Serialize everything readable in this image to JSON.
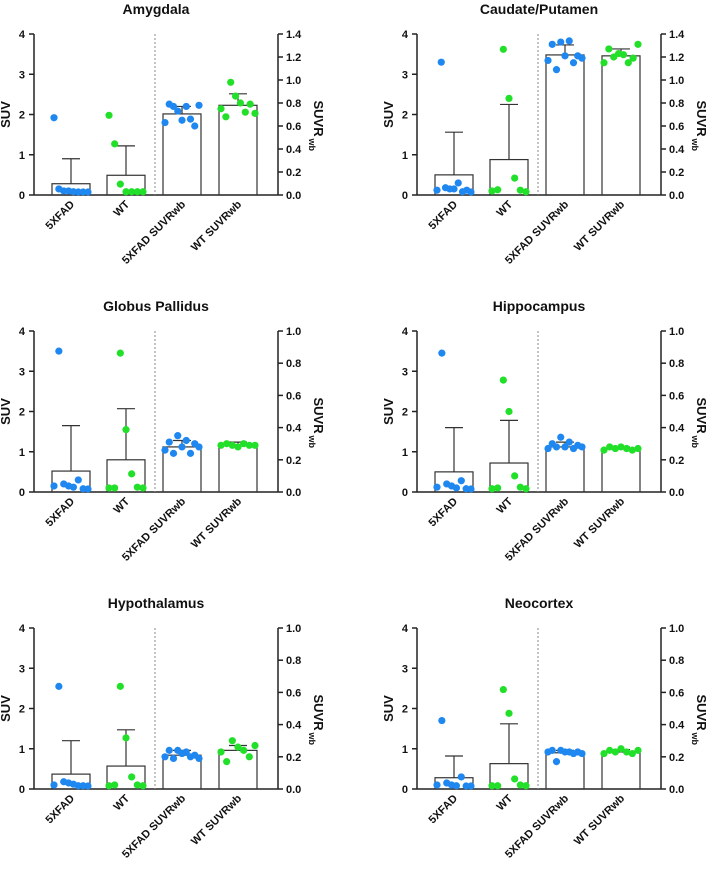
{
  "colors": {
    "5XFAD": "#1f87f0",
    "WT": "#22e02a",
    "axis": "#222222",
    "bar_edge": "#333333"
  },
  "chart_data": [
    {
      "type": "bar",
      "title": "Amygdala",
      "ylabel": "SUV",
      "ylabel_right": "SUVR",
      "ylabel_right_sub": "wb",
      "ylim": [
        0,
        4
      ],
      "ylim_right": [
        0,
        1.4
      ],
      "yticks": [
        "0",
        "1",
        "2",
        "3",
        "4"
      ],
      "yticks_right": [
        "0.0",
        "0.2",
        "0.4",
        "0.6",
        "0.8",
        "1.0",
        "1.2",
        "1.4"
      ],
      "categories": [
        "5XFAD",
        "WT",
        "5XFAD SUVRwb",
        "WT SUVRwb"
      ],
      "series": [
        {
          "name": "5XFAD",
          "axis": "left",
          "mean": 0.28,
          "sd_upper": 0.9,
          "points": [
            1.92,
            0.15,
            0.1,
            0.1,
            0.08,
            0.05,
            0.05,
            0.03
          ]
        },
        {
          "name": "WT",
          "axis": "left",
          "mean": 0.49,
          "sd_upper": 1.22,
          "points": [
            1.98,
            1.27,
            0.27,
            0.08,
            0.08,
            0.08,
            0.08
          ]
        },
        {
          "name": "5XFAD SUVRwb",
          "axis": "right",
          "mean": 0.705,
          "sd_upper": 0.77,
          "points": [
            0.63,
            0.79,
            0.77,
            0.73,
            0.65,
            0.77,
            0.66,
            0.6,
            0.78
          ]
        },
        {
          "name": "WT SUVRwb",
          "axis": "right",
          "mean": 0.78,
          "sd_upper": 0.88,
          "points": [
            0.75,
            0.68,
            0.98,
            0.86,
            0.8,
            0.72,
            0.79,
            0.71
          ]
        }
      ]
    },
    {
      "type": "bar",
      "title": "Caudate/Putamen",
      "ylabel": "SUV",
      "ylabel_right": "SUVR",
      "ylabel_right_sub": "wb",
      "ylim": [
        0,
        4
      ],
      "ylim_right": [
        0,
        1.4
      ],
      "yticks": [
        "0",
        "1",
        "2",
        "3",
        "4"
      ],
      "yticks_right": [
        "0.0",
        "0.2",
        "0.4",
        "0.6",
        "0.8",
        "1.0",
        "1.2",
        "1.4"
      ],
      "categories": [
        "5XFAD",
        "WT",
        "5XFAD SUVRwb",
        "WT SUVRwb"
      ],
      "series": [
        {
          "name": "5XFAD",
          "axis": "left",
          "mean": 0.5,
          "sd_upper": 1.56,
          "points": [
            0.12,
            3.3,
            0.18,
            0.15,
            0.15,
            0.3,
            0.08,
            0.12,
            0.07
          ]
        },
        {
          "name": "WT",
          "axis": "left",
          "mean": 0.88,
          "sd_upper": 2.25,
          "points": [
            0.1,
            0.13,
            3.62,
            2.4,
            0.42,
            0.12,
            0.08
          ]
        },
        {
          "name": "5XFAD SUVRwb",
          "axis": "right",
          "mean": 1.218,
          "sd_upper": 1.305,
          "points": [
            1.17,
            1.31,
            1.09,
            1.33,
            1.21,
            1.34,
            1.15,
            1.21,
            1.19
          ]
        },
        {
          "name": "WT SUVRwb",
          "axis": "right",
          "mean": 1.21,
          "sd_upper": 1.27,
          "points": [
            1.15,
            1.27,
            1.2,
            1.23,
            1.22,
            1.15,
            1.19,
            1.31
          ]
        }
      ]
    },
    {
      "type": "bar",
      "title": "Globus Pallidus",
      "ylabel": "SUV",
      "ylabel_right": "SUVR",
      "ylabel_right_sub": "wb",
      "ylim": [
        0,
        4
      ],
      "ylim_right": [
        0,
        1.0
      ],
      "yticks": [
        "0",
        "1",
        "2",
        "3",
        "4"
      ],
      "yticks_right": [
        "0.0",
        "0.2",
        "0.4",
        "0.6",
        "0.8",
        "1.0"
      ],
      "categories": [
        "5XFAD",
        "WT",
        "5XFAD SUVRwb",
        "WT SUVRwb"
      ],
      "series": [
        {
          "name": "5XFAD",
          "axis": "left",
          "mean": 0.52,
          "sd_upper": 1.65,
          "points": [
            0.15,
            3.5,
            0.2,
            0.15,
            0.12,
            0.3,
            0.08,
            0.05
          ]
        },
        {
          "name": "WT",
          "axis": "left",
          "mean": 0.8,
          "sd_upper": 2.07,
          "points": [
            0.1,
            0.1,
            3.45,
            1.55,
            0.45,
            0.12,
            0.1
          ]
        },
        {
          "name": "5XFAD SUVRwb",
          "axis": "right",
          "mean": 0.28,
          "sd_upper": 0.32,
          "points": [
            0.26,
            0.31,
            0.24,
            0.35,
            0.28,
            0.32,
            0.24,
            0.3,
            0.28
          ]
        },
        {
          "name": "WT SUVRwb",
          "axis": "right",
          "mean": 0.29,
          "sd_upper": 0.31,
          "points": [
            0.29,
            0.3,
            0.29,
            0.28,
            0.3,
            0.29,
            0.29
          ]
        }
      ]
    },
    {
      "type": "bar",
      "title": "Hippocampus",
      "ylabel": "SUV",
      "ylabel_right": "SUVR",
      "ylabel_right_sub": "wb",
      "ylim": [
        0,
        4
      ],
      "ylim_right": [
        0,
        1.0
      ],
      "yticks": [
        "0",
        "1",
        "2",
        "3",
        "4"
      ],
      "yticks_right": [
        "0.0",
        "0.2",
        "0.4",
        "0.6",
        "0.8",
        "1.0"
      ],
      "categories": [
        "5XFAD",
        "WT",
        "5XFAD SUVRwb",
        "WT SUVRwb"
      ],
      "series": [
        {
          "name": "5XFAD",
          "axis": "left",
          "mean": 0.5,
          "sd_upper": 1.6,
          "points": [
            0.12,
            3.45,
            0.2,
            0.15,
            0.1,
            0.28,
            0.08,
            0.05
          ]
        },
        {
          "name": "WT",
          "axis": "left",
          "mean": 0.72,
          "sd_upper": 1.78,
          "points": [
            0.08,
            0.1,
            2.78,
            2.0,
            0.4,
            0.12,
            0.08
          ]
        },
        {
          "name": "5XFAD SUVRwb",
          "axis": "right",
          "mean": 0.28,
          "sd_upper": 0.31,
          "points": [
            0.27,
            0.3,
            0.28,
            0.34,
            0.28,
            0.31,
            0.27,
            0.29,
            0.28
          ]
        },
        {
          "name": "WT SUVRwb",
          "axis": "right",
          "mean": 0.27,
          "sd_upper": 0.28,
          "points": [
            0.26,
            0.28,
            0.27,
            0.28,
            0.27,
            0.26,
            0.27
          ]
        }
      ]
    },
    {
      "type": "bar",
      "title": "Hypothalamus",
      "ylabel": "SUV",
      "ylabel_right": "SUVR",
      "ylabel_right_sub": "wb",
      "ylim": [
        0,
        4
      ],
      "ylim_right": [
        0,
        1.0
      ],
      "yticks": [
        "0",
        "1",
        "2",
        "3",
        "4"
      ],
      "yticks_right": [
        "0.0",
        "0.2",
        "0.4",
        "0.6",
        "0.8",
        "1.0"
      ],
      "categories": [
        "5XFAD",
        "WT",
        "5XFAD SUVRwb",
        "WT SUVRwb"
      ],
      "series": [
        {
          "name": "5XFAD",
          "axis": "left",
          "mean": 0.37,
          "sd_upper": 1.2,
          "points": [
            0.1,
            2.55,
            0.18,
            0.15,
            0.12,
            0.08,
            0.08,
            0.05
          ]
        },
        {
          "name": "WT",
          "axis": "left",
          "mean": 0.57,
          "sd_upper": 1.47,
          "points": [
            0.08,
            0.1,
            2.55,
            1.27,
            0.3,
            0.1,
            0.08
          ]
        },
        {
          "name": "5XFAD SUVRwb",
          "axis": "right",
          "mean": 0.21,
          "sd_upper": 0.24,
          "points": [
            0.2,
            0.24,
            0.19,
            0.24,
            0.22,
            0.23,
            0.2,
            0.21,
            0.19
          ]
        },
        {
          "name": "WT SUVRwb",
          "axis": "right",
          "mean": 0.24,
          "sd_upper": 0.27,
          "points": [
            0.23,
            0.17,
            0.3,
            0.26,
            0.24,
            0.2,
            0.27
          ]
        }
      ]
    },
    {
      "type": "bar",
      "title": "Neocortex",
      "ylabel": "SUV",
      "ylabel_right": "SUVR",
      "ylabel_right_sub": "wb",
      "ylim": [
        0,
        4
      ],
      "ylim_right": [
        0,
        1.0
      ],
      "yticks": [
        "0",
        "1",
        "2",
        "3",
        "4"
      ],
      "yticks_right": [
        "0.0",
        "0.2",
        "0.4",
        "0.6",
        "0.8",
        "1.0"
      ],
      "categories": [
        "5XFAD",
        "WT",
        "5XFAD SUVRwb",
        "WT SUVRwb"
      ],
      "series": [
        {
          "name": "5XFAD",
          "axis": "left",
          "mean": 0.28,
          "sd_upper": 0.82,
          "points": [
            0.1,
            1.7,
            0.15,
            0.1,
            0.08,
            0.3,
            0.05,
            0.03
          ]
        },
        {
          "name": "WT",
          "axis": "left",
          "mean": 0.63,
          "sd_upper": 1.62,
          "points": [
            0.08,
            0.08,
            2.47,
            1.88,
            0.25,
            0.1,
            0.08
          ]
        },
        {
          "name": "5XFAD SUVRwb",
          "axis": "right",
          "mean": 0.225,
          "sd_upper": 0.24,
          "points": [
            0.23,
            0.24,
            0.17,
            0.24,
            0.23,
            0.23,
            0.22,
            0.23,
            0.22
          ]
        },
        {
          "name": "WT SUVRwb",
          "axis": "right",
          "mean": 0.23,
          "sd_upper": 0.245,
          "points": [
            0.22,
            0.24,
            0.23,
            0.25,
            0.23,
            0.22,
            0.24
          ]
        }
      ]
    }
  ]
}
